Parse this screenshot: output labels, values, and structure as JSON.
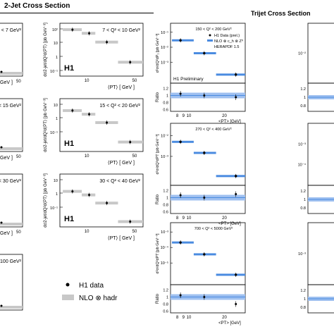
{
  "headings": {
    "left": "2-Jet Cross Section",
    "right": "Trijet Cross Section"
  },
  "colors": {
    "nlo_band_dijet": "#c8c8c8",
    "nlo_band_trijet": "#4a8be0",
    "ratio_band_trijet": "#9fc0f0",
    "data_marker": "#000000"
  },
  "dijet_legend": {
    "data": "H1 data",
    "theory": "NLO ⊗ hadr"
  },
  "chart_data": [
    {
      "id": "dijet-a",
      "type": "scatter",
      "title": "< 7 GeV²",
      "ylabel": "",
      "xlabel": "GeV ]",
      "xticks": [
        "50"
      ],
      "yticks": [],
      "data": [
        {
          "x": 1,
          "y": 1
        }
      ]
    },
    {
      "id": "dijet-b",
      "type": "scatter",
      "title": "7 < Q² < 10 GeV²",
      "ylabel": "dσ2-jet/dQ²d⟨PT⟩ [pb GeV⁻³]",
      "xlabel": "⟨PT⟩ [ GeV ]",
      "xticks": [
        "10",
        "50"
      ],
      "yticks": [
        "10²",
        "10",
        "1",
        "10⁻¹"
      ],
      "tag": "H1",
      "data": [
        {
          "x": 8.5,
          "y": 55
        },
        {
          "x": 13.5,
          "y": 30
        },
        {
          "x": 22,
          "y": 7
        },
        {
          "x": 42,
          "y": 0.25
        }
      ]
    },
    {
      "id": "dijet-c",
      "type": "scatter",
      "title": "< 15 GeV²",
      "ylabel": "",
      "xlabel": "GeV ]",
      "xticks": [
        "50"
      ],
      "yticks": [],
      "data": [
        {
          "x": 1,
          "y": 1
        }
      ]
    },
    {
      "id": "dijet-d",
      "type": "scatter",
      "title": "15 < Q² < 20 GeV²",
      "ylabel": "dσ2-jet/dQ²d⟨PT⟩ [pb GeV⁻³]",
      "xlabel": "⟨PT⟩ [ GeV ]",
      "xticks": [
        "10",
        "50"
      ],
      "yticks": [
        "10",
        "1",
        "10⁻¹"
      ],
      "tag": "H1",
      "data": [
        {
          "x": 8.5,
          "y": 22
        },
        {
          "x": 13.5,
          "y": 12
        },
        {
          "x": 22,
          "y": 3
        },
        {
          "x": 42,
          "y": 0.12
        }
      ]
    },
    {
      "id": "dijet-e",
      "type": "scatter",
      "title": "< 30 GeV²",
      "ylabel": "",
      "xlabel": "GeV ]",
      "xticks": [
        "50"
      ],
      "yticks": [],
      "data": [
        {
          "x": 1,
          "y": 1
        }
      ]
    },
    {
      "id": "dijet-f",
      "type": "scatter",
      "title": "30 < Q² < 40 GeV²",
      "ylabel": "dσ2-jet/dQ²d⟨PT⟩ [pb GeV⁻³]",
      "xlabel": "⟨PT⟩ [ GeV ]",
      "xticks": [
        "10",
        "50"
      ],
      "yticks": [
        "10",
        "1",
        "10⁻¹"
      ],
      "tag": "H1",
      "data": [
        {
          "x": 8.5,
          "y": 9
        },
        {
          "x": 13.5,
          "y": 5
        },
        {
          "x": 22,
          "y": 1.3
        },
        {
          "x": 42,
          "y": 0.06
        }
      ]
    },
    {
      "id": "dijet-g",
      "type": "scatter",
      "title": "< 100 GeV²",
      "ylabel": "",
      "xlabel": "",
      "xticks": [],
      "yticks": [],
      "data": [
        {
          "x": 1,
          "y": 1
        }
      ]
    },
    {
      "id": "trijet-1",
      "type": "scatter",
      "title": "150 < Q² < 200 GeV²",
      "ylabel": "d²σ/dQ²dP₁ [pb GeV⁻³]",
      "xlabel": "<PT> [GeV]",
      "xticks": [
        "8",
        "9",
        "10",
        "20"
      ],
      "yticks": [
        "10⁻¹",
        "10⁻²",
        "10⁻³"
      ],
      "legend": [
        "H1 Data (prel.)",
        "NLO ⊗ c_h ⊗ Z⁰",
        "HERAPDF 1.5"
      ],
      "tag": "H1 Preliminary",
      "ratio_label": "Ratio",
      "ratio_yticks": [
        "1.2",
        "1",
        "0.8",
        "0.6"
      ],
      "data": [
        {
          "x": 8.5,
          "y": 0.024,
          "ratio": 1.05
        },
        {
          "x": 13.5,
          "y": 0.006,
          "ratio": 1.0
        },
        {
          "x": 25,
          "y": 0.0006,
          "ratio": 0.95
        }
      ]
    },
    {
      "id": "trijet-2",
      "type": "scatter",
      "title": "",
      "ylabel": "",
      "xlabel": "",
      "xticks": [],
      "yticks": [
        "10⁻²"
      ],
      "ratio_yticks": [
        "1.2",
        "1",
        "0.8"
      ],
      "data": []
    },
    {
      "id": "trijet-3",
      "type": "scatter",
      "title": "270 < Q² < 400 GeV²",
      "ylabel": "d²σ/dQ²dPT [pb GeV⁻³]",
      "xlabel": "<PT> [GeV]",
      "xticks": [
        "8",
        "9",
        "10",
        "20"
      ],
      "yticks": [
        "10⁻²",
        "10⁻³"
      ],
      "ratio_label": "Ratio",
      "ratio_yticks": [
        "1.2",
        "1",
        "0.8",
        "0.6"
      ],
      "data": [
        {
          "x": 8.5,
          "y": 0.012,
          "ratio": 1.07
        },
        {
          "x": 13.5,
          "y": 0.004,
          "ratio": 1.0
        },
        {
          "x": 25,
          "y": 0.0004,
          "ratio": 1.1
        }
      ]
    },
    {
      "id": "trijet-4",
      "type": "scatter",
      "title": "",
      "ylabel": "",
      "xlabel": "",
      "xticks": [],
      "yticks": [
        "10⁻³",
        "10⁻⁴"
      ],
      "ratio_yticks": [
        "1.2",
        "1",
        "0.8"
      ],
      "data": []
    },
    {
      "id": "trijet-5",
      "type": "scatter",
      "title": "700 < Q² < 5000 GeV²",
      "ylabel": "d²σ/dQ²dPT [pb GeV⁻³]",
      "xlabel": "<PT> [GeV]",
      "xticks": [
        "8",
        "9",
        "10",
        "20"
      ],
      "yticks": [
        "10⁻³",
        "10⁻⁴",
        "10⁻⁵"
      ],
      "ratio_label": "Ratio",
      "ratio_yticks": [
        "1.2",
        "1",
        "0.8",
        "0.6"
      ],
      "data": [
        {
          "x": 8.5,
          "y": 0.0003,
          "ratio": 1.05
        },
        {
          "x": 13.5,
          "y": 0.0001,
          "ratio": 1.0
        },
        {
          "x": 25,
          "y": 1.5e-05,
          "ratio": 0.8
        }
      ]
    },
    {
      "id": "trijet-6",
      "type": "scatter",
      "title": "",
      "ylabel": "",
      "xlabel": "",
      "xticks": [],
      "yticks": [
        "10⁻³"
      ],
      "ratio_yticks": [
        "1.2",
        "1",
        "0.8"
      ],
      "data": []
    }
  ]
}
